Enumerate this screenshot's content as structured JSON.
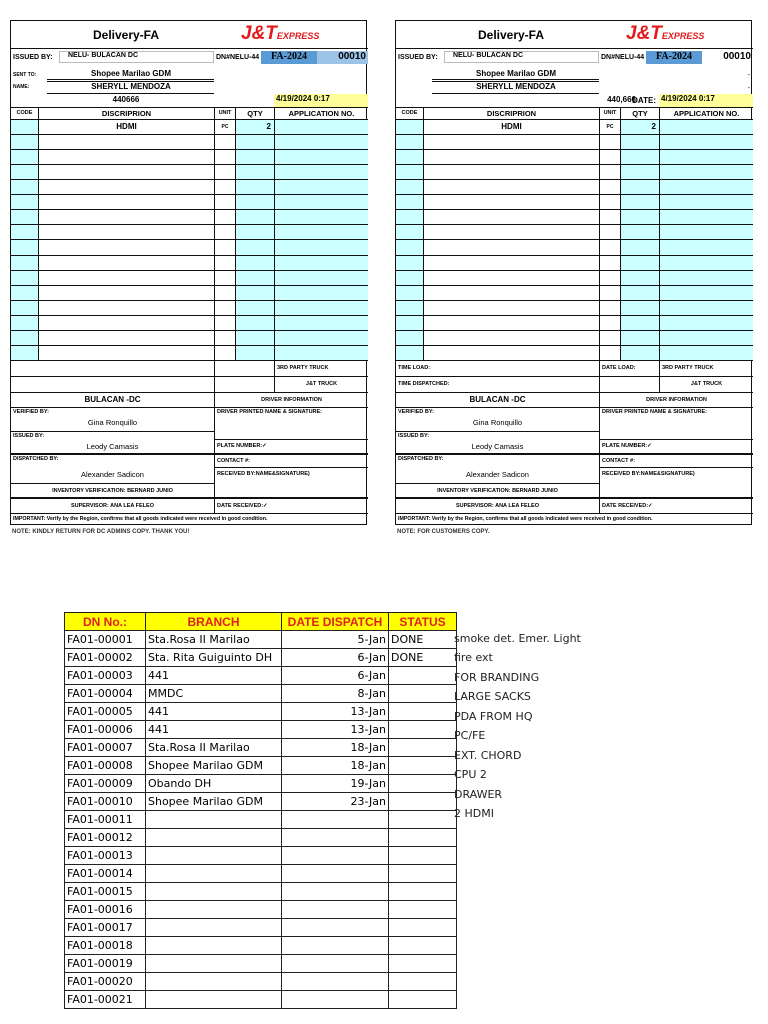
{
  "colors": {
    "item_fill": "#ccffff",
    "dn_fill": "#5b9bd5",
    "num_fill": "#9dc3e6",
    "date_fill": "#ffff99",
    "header_fill": "#ffff00",
    "header_text": "#e02020",
    "brand_red": "#e3191b"
  },
  "forms": [
    {
      "title": "Delivery-FA",
      "logo_main": "J&T",
      "logo_sub": "EXPRESS",
      "issued_label": "ISSUED BY:",
      "issued_value": "NELU- BULACAN DC",
      "dn_label": "DN#NELU-44",
      "dn_series": "FA-2024",
      "dn_number": "00010",
      "sent_label": "SENT TO:",
      "sent_value": "Shopee Marilao GDM",
      "sent_extra": "",
      "name_label": "NAME:",
      "name_value": "SHERYLL MENDOZA",
      "name_extra": "",
      "number": "440666",
      "date_label": "",
      "date_value": "4/19/2024 0:17",
      "headers": [
        "CODE",
        "DISCRIPRION",
        "UNIT",
        "QTY",
        "APPLICATION NO."
      ],
      "item": {
        "code": "",
        "description": "HDMI",
        "unit": "PC",
        "qty": "2",
        "application": ""
      },
      "time_load": "",
      "time_dispatched": "",
      "date_load": "",
      "third_party": "3RD PARTY TRUCK",
      "jt_truck": "J&T TRUCK",
      "hub": "BULACAN -DC",
      "driver_info": "DRIVER INFORMATION",
      "verified_label": "VERIFIED BY:",
      "verified_value": "Gina Ronquillo",
      "issued2_label": "ISSUED BY:",
      "issued2_value": "Leody Camasis",
      "dispatched_label": "DISPATCHED BY:",
      "dispatched_value": "Alexander Sadicon",
      "driver_sig": "DRIVER PRINTED NAME & SIGNATURE:",
      "plate": "PLATE NUMBER:✓",
      "contact": "CONTACT #:",
      "received": "RECEIVED BY:NAME&SIGNATURE)",
      "inventory": "INVENTORY VERIFICATION: BERNARD JUNIO",
      "supervisor": "SUPERVISOR: ANA LEA FELEO",
      "date_received": "DATE RECEIVED:✓",
      "important": "IMPORTANT: Verify by the Region, confirms that all goods indicated were received in good condition.",
      "note": "NOTE: KINDLY RETURN FOR DC ADMINS COPY. THANK YOU!"
    },
    {
      "title": "Delivery-FA",
      "logo_main": "J&T",
      "logo_sub": "EXPRESS",
      "issued_label": "ISSUED BY:",
      "issued_value": "NELU- BULACAN DC",
      "dn_label": "DN#NELU-44",
      "dn_series": "FA-2024",
      "dn_number": "00010",
      "sent_label": "",
      "sent_value": "Shopee Marilao GDM",
      "sent_extra": "-",
      "name_label": "",
      "name_value": "SHERYLL MENDOZA",
      "name_extra": "-",
      "number": "440,666",
      "date_label": "DATE:",
      "date_value": "4/19/2024 0:17",
      "headers": [
        "CODE",
        "DISCRIPRION",
        "UNIT",
        "QTY",
        "APPLICATION NO."
      ],
      "item": {
        "code": "",
        "description": "HDMI",
        "unit": "PC",
        "qty": "2",
        "application": ""
      },
      "time_load": "TIME LOAD:",
      "time_dispatched": "TIME DISPATCHED:",
      "date_load": "DATE LOAD:",
      "third_party": "3RD PARTY TRUCK",
      "jt_truck": "J&T TRUCK",
      "hub": "BULACAN -DC",
      "driver_info": "DRIVER INFORMATION",
      "verified_label": "VERIFIED BY:",
      "verified_value": "Gina Ronquillo",
      "issued2_label": "ISSUED BY:",
      "issued2_value": "Leody Camasis",
      "dispatched_label": "DISPATCHED BY:",
      "dispatched_value": "Alexander Sadicon",
      "driver_sig": "DRIVER PRINTED NAME & SIGNATURE:",
      "plate": "PLATE NUMBER:✓",
      "contact": "CONTACT #:",
      "received": "RECEIVED BY:NAME&SIGNATURE)",
      "inventory": "INVENTORY VERIFICATION: BERNARD JUNIO",
      "supervisor": "SUPERVISOR: ANA LEA FELEO",
      "date_received": "DATE RECEIVED:✓",
      "important": "IMPORTANT: Verify by the Region, confirms that all goods indicated were received in good condition.",
      "note": "NOTE: FOR CUSTOMERS COPY."
    }
  ],
  "log": {
    "headers": [
      "DN No.:",
      "BRANCH",
      "DATE DISPATCH",
      "STATUS"
    ],
    "rows": [
      {
        "dn": "FA01-00001",
        "branch": "Sta.Rosa II Marilao",
        "date": "5-Jan",
        "status": "DONE",
        "remark": "smoke det. Emer. Light"
      },
      {
        "dn": "FA01-00002",
        "branch": "Sta. Rita Guiguinto DH",
        "date": "6-Jan",
        "status": "DONE",
        "remark": "fire ext"
      },
      {
        "dn": "FA01-00003",
        "branch": "441",
        "date": "6-Jan",
        "status": "",
        "remark": "FOR BRANDING"
      },
      {
        "dn": "FA01-00004",
        "branch": "MMDC",
        "date": "8-Jan",
        "status": "",
        "remark": "LARGE SACKS"
      },
      {
        "dn": "FA01-00005",
        "branch": "441",
        "date": "13-Jan",
        "status": "",
        "remark": "PDA FROM HQ"
      },
      {
        "dn": "FA01-00006",
        "branch": "441",
        "date": "13-Jan",
        "status": "",
        "remark": "PC/FE"
      },
      {
        "dn": "FA01-00007",
        "branch": "Sta.Rosa II Marilao",
        "date": "18-Jan",
        "status": "",
        "remark": "EXT. CHORD"
      },
      {
        "dn": "FA01-00008",
        "branch": "Shopee Marilao GDM",
        "date": "18-Jan",
        "status": "",
        "remark": "CPU 2"
      },
      {
        "dn": "FA01-00009",
        "branch": "Obando DH",
        "date": "19-Jan",
        "status": "",
        "remark": "DRAWER"
      },
      {
        "dn": "FA01-00010",
        "branch": "Shopee Marilao GDM",
        "date": "23-Jan",
        "status": "",
        "remark": "2 HDMI"
      },
      {
        "dn": "FA01-00011",
        "branch": "",
        "date": "",
        "status": "",
        "remark": ""
      },
      {
        "dn": "FA01-00012",
        "branch": "",
        "date": "",
        "status": "",
        "remark": ""
      },
      {
        "dn": "FA01-00013",
        "branch": "",
        "date": "",
        "status": "",
        "remark": ""
      },
      {
        "dn": "FA01-00014",
        "branch": "",
        "date": "",
        "status": "",
        "remark": ""
      },
      {
        "dn": "FA01-00015",
        "branch": "",
        "date": "",
        "status": "",
        "remark": ""
      },
      {
        "dn": "FA01-00016",
        "branch": "",
        "date": "",
        "status": "",
        "remark": ""
      },
      {
        "dn": "FA01-00017",
        "branch": "",
        "date": "",
        "status": "",
        "remark": ""
      },
      {
        "dn": "FA01-00018",
        "branch": "",
        "date": "",
        "status": "",
        "remark": ""
      },
      {
        "dn": "FA01-00019",
        "branch": "",
        "date": "",
        "status": "",
        "remark": ""
      },
      {
        "dn": "FA01-00020",
        "branch": "",
        "date": "",
        "status": "",
        "remark": ""
      },
      {
        "dn": "FA01-00021",
        "branch": "",
        "date": "",
        "status": "",
        "remark": ""
      }
    ]
  }
}
